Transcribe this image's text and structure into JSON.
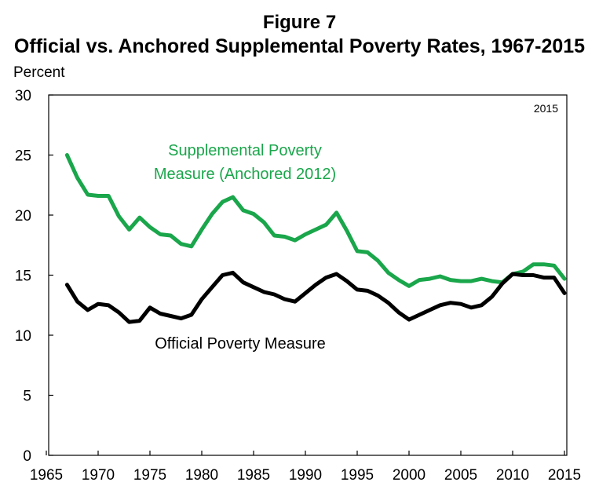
{
  "chart_data": {
    "type": "line",
    "figure_label": "Figure 7",
    "title": "Official vs. Anchored Supplemental Poverty Rates, 1967-2015",
    "ylabel": "Percent",
    "xlabel": "",
    "xlim": [
      1965,
      2015
    ],
    "ylim": [
      0,
      30
    ],
    "x_ticks": [
      "1965",
      "1970",
      "1975",
      "1980",
      "1985",
      "1990",
      "1995",
      "2000",
      "2005",
      "2010",
      "2015"
    ],
    "y_ticks": [
      "0",
      "5",
      "10",
      "15",
      "20",
      "25",
      "30"
    ],
    "corner_label": "2015",
    "x": [
      1967,
      1968,
      1969,
      1970,
      1971,
      1972,
      1973,
      1974,
      1975,
      1976,
      1977,
      1978,
      1979,
      1980,
      1981,
      1982,
      1983,
      1984,
      1985,
      1986,
      1987,
      1988,
      1989,
      1990,
      1991,
      1992,
      1993,
      1994,
      1995,
      1996,
      1997,
      1998,
      1999,
      2000,
      2001,
      2002,
      2003,
      2004,
      2005,
      2006,
      2007,
      2008,
      2009,
      2010,
      2011,
      2012,
      2013,
      2014,
      2015
    ],
    "series": [
      {
        "name": "Supplemental Poverty Measure (Anchored 2012)",
        "label_lines": [
          "Supplemental Poverty",
          "Measure (Anchored 2012)"
        ],
        "color": "#1aa64b",
        "values": [
          25.0,
          23.1,
          21.7,
          21.6,
          21.6,
          19.9,
          18.8,
          19.8,
          19.0,
          18.4,
          18.3,
          17.6,
          17.4,
          18.8,
          20.1,
          21.1,
          21.5,
          20.4,
          20.1,
          19.4,
          18.3,
          18.2,
          17.9,
          18.4,
          18.8,
          19.2,
          20.2,
          18.7,
          17.0,
          16.9,
          16.2,
          15.2,
          14.6,
          14.1,
          14.6,
          14.7,
          14.9,
          14.6,
          14.5,
          14.5,
          14.7,
          14.5,
          14.4,
          15.1,
          15.3,
          15.9,
          15.9,
          15.8,
          14.7
        ]
      },
      {
        "name": "Official Poverty Measure",
        "label_lines": [
          "Official Poverty Measure"
        ],
        "color": "#000000",
        "values": [
          14.2,
          12.8,
          12.1,
          12.6,
          12.5,
          11.9,
          11.1,
          11.2,
          12.3,
          11.8,
          11.6,
          11.4,
          11.7,
          13.0,
          14.0,
          15.0,
          15.2,
          14.4,
          14.0,
          13.6,
          13.4,
          13.0,
          12.8,
          13.5,
          14.2,
          14.8,
          15.1,
          14.5,
          13.8,
          13.7,
          13.3,
          12.7,
          11.9,
          11.3,
          11.7,
          12.1,
          12.5,
          12.7,
          12.6,
          12.3,
          12.5,
          13.2,
          14.3,
          15.1,
          15.0,
          15.0,
          14.8,
          14.8,
          13.5
        ]
      }
    ]
  }
}
